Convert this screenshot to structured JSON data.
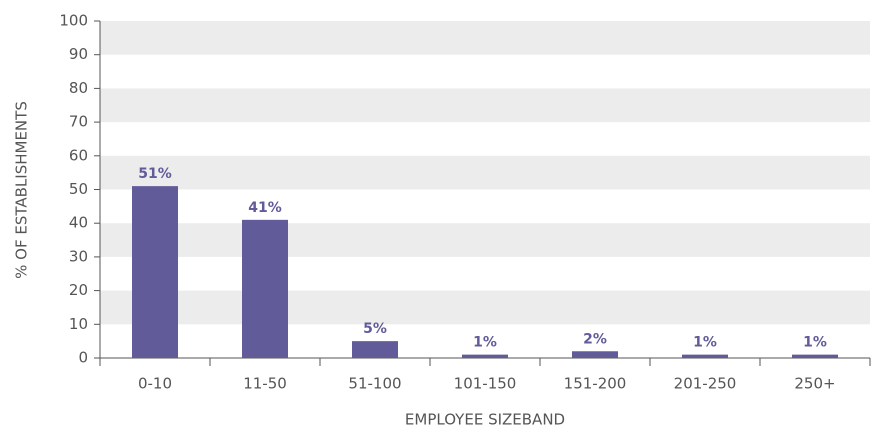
{
  "chart_data": {
    "type": "bar",
    "categories": [
      "0-10",
      "11-50",
      "51-100",
      "101-150",
      "151-200",
      "201-250",
      "250+"
    ],
    "values": [
      51,
      41,
      5,
      1,
      2,
      1,
      1
    ],
    "value_labels": [
      "51%",
      "41%",
      "5%",
      "1%",
      "2%",
      "1%",
      "1%"
    ],
    "color": "#615c99",
    "ylim": [
      0,
      100
    ],
    "yticks": [
      0,
      10,
      20,
      30,
      40,
      50,
      60,
      70,
      80,
      90,
      100
    ],
    "grid": "bands",
    "y_label": "% OF ESTABLISHMENTS",
    "x_label": "EMPLOYEE SIZEBAND"
  }
}
